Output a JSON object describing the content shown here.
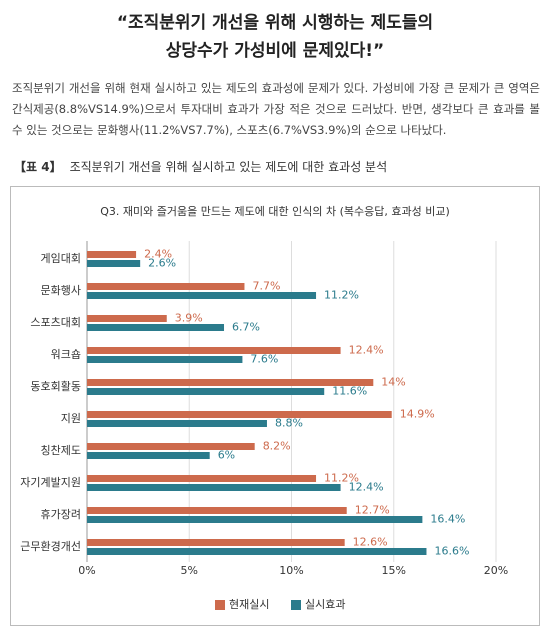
{
  "header": {
    "title_lines": [
      "“조직분위기 개선을 위해 시행하는 제도들의",
      "상당수가 가성비에 문제있다!”"
    ]
  },
  "body": {
    "paragraph": "조직분위기 개선을 위해 현재 실시하고 있는 제도의 효과성에 문제가 있다. 가성비에 가장 큰 문제가 큰 영역은 간식제공(8.8%VS14.9%)으로서 투자대비 효과가 가장 적은 것으로 드러났다. 반면, 생각보다 큰 효과를 볼 수 있는 것으로는 문화행사(11.2%VS7.7%), 스포츠(6.7%VS3.9%)의 순으로 나타났다."
  },
  "caption": {
    "label": "【표 4】",
    "text": "조직분위기 개선을 위해 실시하고 있는 제도에 대한 효과성 분석"
  },
  "chart_data": {
    "type": "hbar",
    "title": "Q3. 재미와 즐거움을 만드는 제도에 대한 인식의 차 (복수응답, 효과성 비교)",
    "categories": [
      "게임대회",
      "문화행사",
      "스포츠대회",
      "워크숍",
      "동호회활동",
      "지원",
      "칭찬제도",
      "자기계발지원",
      "휴가장려",
      "근무환경개선"
    ],
    "series": [
      {
        "name": "현재실시",
        "color": "#cd6a4c",
        "values": [
          2.4,
          7.7,
          3.9,
          12.4,
          14,
          14.9,
          8.2,
          11.2,
          12.7,
          12.6
        ],
        "value_labels": [
          "2.4%",
          "7.7%",
          "3.9%",
          "12.4%",
          "14%",
          "14.9%",
          "8.2%",
          "11.2%",
          "12.7%",
          "12.6%"
        ]
      },
      {
        "name": "실시효과",
        "color": "#2b7b8c",
        "values": [
          2.6,
          11.2,
          6.7,
          7.6,
          11.6,
          8.8,
          6,
          12.4,
          16.4,
          16.6
        ],
        "value_labels": [
          "2.6%",
          "11.2%",
          "6.7%",
          "7.6%",
          "11.6%",
          "8.8%",
          "6%",
          "12.4%",
          "16.4%",
          "16.6%"
        ]
      }
    ],
    "xlim": [
      0,
      20
    ],
    "xticks": [
      {
        "value": 0,
        "label": "0%"
      },
      {
        "value": 5,
        "label": "5%"
      },
      {
        "value": 10,
        "label": "10%"
      },
      {
        "value": 15,
        "label": "15%"
      },
      {
        "value": 20,
        "label": "20%"
      }
    ],
    "grid": true,
    "legend": "bottom"
  }
}
